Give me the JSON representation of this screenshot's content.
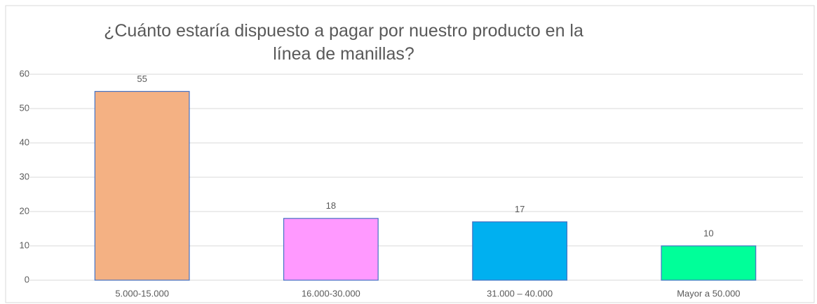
{
  "chart_data": {
    "type": "bar",
    "title": "¿Cuánto estaría dispuesto a pagar por nuestro producto en la línea de manillas?",
    "categories": [
      "5.000-15.000",
      "16.000-30.000",
      "31.000 – 40.000",
      "Mayor a 50.000"
    ],
    "values": [
      55,
      18,
      17,
      10
    ],
    "colors": [
      "#f4b183",
      "#ff99ff",
      "#00b0f0",
      "#00ff99"
    ],
    "ylim": [
      0,
      60
    ],
    "yticks": [
      0,
      10,
      20,
      30,
      40,
      50,
      60
    ],
    "grid": true
  }
}
